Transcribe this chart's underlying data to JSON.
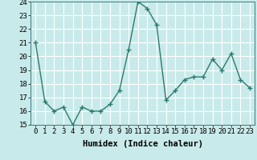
{
  "x": [
    0,
    1,
    2,
    3,
    4,
    5,
    6,
    7,
    8,
    9,
    10,
    11,
    12,
    13,
    14,
    15,
    16,
    17,
    18,
    19,
    20,
    21,
    22,
    23
  ],
  "y": [
    21,
    16.7,
    16.0,
    16.3,
    15.0,
    16.3,
    16.0,
    16.0,
    16.5,
    17.5,
    20.5,
    24.0,
    23.5,
    22.3,
    16.8,
    17.5,
    18.3,
    18.5,
    18.5,
    19.8,
    19.0,
    20.2,
    18.3,
    17.7
  ],
  "line_color": "#2d7a6e",
  "marker": "+",
  "bg_color": "#c8eaea",
  "grid_color": "#ffffff",
  "xlabel": "Humidex (Indice chaleur)",
  "ylim": [
    15,
    24
  ],
  "xlim": [
    -0.5,
    23.5
  ],
  "yticks": [
    15,
    16,
    17,
    18,
    19,
    20,
    21,
    22,
    23,
    24
  ],
  "xticks": [
    0,
    1,
    2,
    3,
    4,
    5,
    6,
    7,
    8,
    9,
    10,
    11,
    12,
    13,
    14,
    15,
    16,
    17,
    18,
    19,
    20,
    21,
    22,
    23
  ],
  "xlabel_fontsize": 7.5,
  "tick_fontsize": 6.5,
  "line_width": 1.0,
  "marker_size": 4
}
